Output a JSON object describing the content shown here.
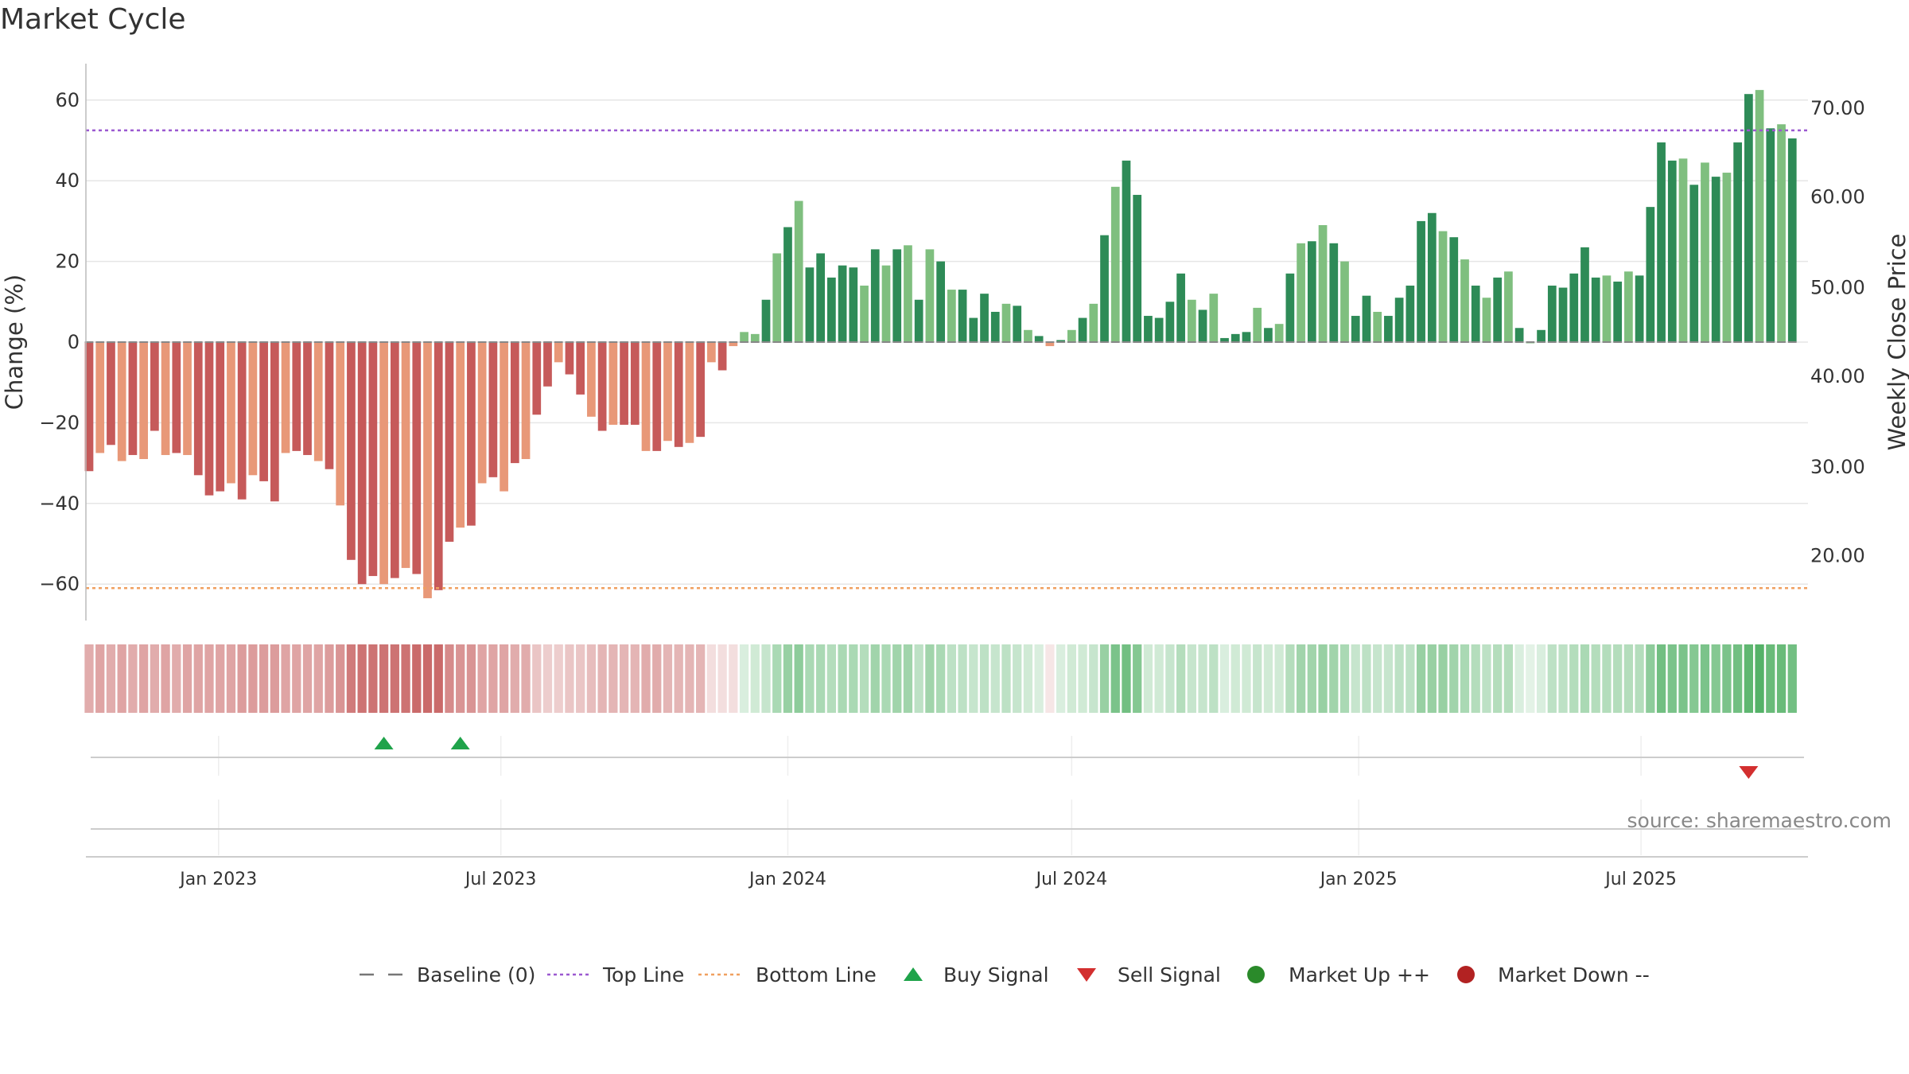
{
  "chart_data": {
    "type": "bar",
    "title": "Market Cycle",
    "ylabel_left": "Change (%)",
    "ylabel_right": "Weekly Close Price",
    "ylim": [
      -69,
      69
    ],
    "y_ticks": [
      60,
      40,
      20,
      0,
      -20,
      -40,
      -60
    ],
    "y_tick_labels": [
      "60",
      "40",
      "20",
      "0",
      "−20",
      "−40",
      "−60"
    ],
    "right_ticks": [
      {
        "label": "70.00",
        "y": 58
      },
      {
        "label": "60.00",
        "y": 36
      },
      {
        "label": "50.00",
        "y": 13.5
      },
      {
        "label": "40.00",
        "y": -8.5
      },
      {
        "label": "30.00",
        "y": -31
      },
      {
        "label": "20.00",
        "y": -53
      }
    ],
    "top_line": 52.5,
    "bottom_line": -61,
    "baseline": 0,
    "x_start": "2022-10-10",
    "x_step_days": 7,
    "x_end": "2025-10-13",
    "x_ticks": [
      {
        "label": "Jan 2023",
        "date": "2023-01-01"
      },
      {
        "label": "Jul 2023",
        "date": "2023-07-01"
      },
      {
        "label": "Jan 2024",
        "date": "2024-01-01"
      },
      {
        "label": "Jul 2024",
        "date": "2024-07-01"
      },
      {
        "label": "Jan 2025",
        "date": "2025-01-01"
      },
      {
        "label": "Jul 2025",
        "date": "2025-07-01"
      }
    ],
    "values": [
      -32,
      -27.5,
      -25.5,
      -29.5,
      -28,
      -29,
      -22,
      -28,
      -27.5,
      -28,
      -33,
      -38,
      -37,
      -35,
      -39,
      -33,
      -34.5,
      -39.5,
      -27.5,
      -27,
      -28,
      -29.5,
      -31.5,
      -40.5,
      -54,
      -60,
      -58,
      -60,
      -58.5,
      -56,
      -57.5,
      -63.5,
      -61.5,
      -49.5,
      -46,
      -45.5,
      -35,
      -33.5,
      -37,
      -30,
      -29,
      -18,
      -11,
      -5,
      -8,
      -13,
      -18.5,
      -22,
      -20.5,
      -20.5,
      -20.5,
      -27,
      -27,
      -24.5,
      -26,
      -25,
      -23.5,
      -5,
      -7,
      -1,
      2.5,
      2,
      10.5,
      22,
      28.5,
      35,
      18.5,
      22,
      16,
      19,
      18.5,
      14,
      23,
      19,
      23,
      24,
      10.5,
      23,
      20,
      13,
      13,
      6,
      12,
      7.5,
      9.5,
      9,
      3,
      1.5,
      -1,
      0.5,
      3,
      6,
      9.5,
      26.5,
      38.5,
      45,
      36.5,
      6.5,
      6,
      10,
      17,
      10.5,
      8,
      12,
      1,
      2,
      2.5,
      8.5,
      3.5,
      4.5,
      17,
      24.5,
      25,
      29,
      24.5,
      20,
      6.5,
      11.5,
      7.5,
      6.5,
      11,
      14,
      30,
      32,
      27.5,
      26,
      20.5,
      14,
      11,
      16,
      17.5,
      3.5,
      0,
      3,
      14,
      13.5,
      17,
      23.5,
      16,
      16.5,
      15,
      17.5,
      16.5,
      33.5,
      49.5,
      45,
      45.5,
      39,
      44.5,
      41,
      42,
      49.5,
      61.5,
      62.5,
      53,
      54,
      50.5
    ],
    "bar_colors": "dddddddddddddddddddddddddddddddddddddddddddddddddddddddddddddGGGGGGGGGGGGGGGGGGGGGGGGGGGGGGGGGGGGGGGGGGGGGGGGGGGGGGGGGGGGGGGGGGGGGGGGGGGGGGGGGGGGGGGGGGGGGGGGGGGGGGGGGGGGGGGGGGGGGGGGGGGGGGGGGGGGGGGGGGGGGGGGGGGGGGGGGGGGGGGGGGGGGGG",
    "bar_shades": "DlDlDlDlDlDDDlDlDDlDDlDlDDDlDlDlDDlDlDlDlDDlDDlDlDDlDlDlDlDlDlGlGlGGGGGlGlGlGlGlGGGGlGlGlGlGlGlGGGGGGlGlGGGlGlGlGlGlGGlGGGGGlGlGlGlGlGGGGGGlGlGGGGlGlGlGGlGlGlGlGGlGGGGGlGlGlGGGGlGl",
    "signal_strip": [
      0.5,
      0.55,
      0.5,
      0.55,
      0.5,
      0.55,
      0.5,
      0.55,
      0.5,
      0.55,
      0.55,
      0.55,
      0.55,
      0.55,
      0.6,
      0.6,
      0.6,
      0.6,
      0.55,
      0.55,
      0.55,
      0.55,
      0.6,
      0.65,
      0.8,
      0.85,
      0.85,
      0.85,
      0.85,
      0.85,
      0.9,
      0.9,
      0.9,
      0.7,
      0.65,
      0.65,
      0.55,
      0.55,
      0.55,
      0.5,
      0.5,
      0.35,
      0.3,
      0.3,
      0.35,
      0.35,
      0.4,
      0.45,
      0.45,
      0.45,
      0.45,
      0.5,
      0.5,
      0.45,
      0.45,
      0.45,
      0.45,
      0.2,
      0.2,
      0.2,
      0.2,
      0.25,
      0.3,
      0.45,
      0.55,
      0.6,
      0.45,
      0.45,
      0.4,
      0.45,
      0.45,
      0.4,
      0.5,
      0.45,
      0.5,
      0.5,
      0.35,
      0.5,
      0.45,
      0.35,
      0.35,
      0.3,
      0.35,
      0.3,
      0.35,
      0.3,
      0.25,
      0.2,
      0.15,
      0.2,
      0.25,
      0.25,
      0.3,
      0.55,
      0.7,
      0.75,
      0.65,
      0.25,
      0.25,
      0.3,
      0.4,
      0.3,
      0.3,
      0.35,
      0.2,
      0.25,
      0.25,
      0.3,
      0.25,
      0.25,
      0.4,
      0.5,
      0.5,
      0.55,
      0.5,
      0.45,
      0.3,
      0.35,
      0.3,
      0.3,
      0.35,
      0.35,
      0.55,
      0.55,
      0.55,
      0.5,
      0.45,
      0.4,
      0.35,
      0.4,
      0.4,
      0.2,
      0.15,
      0.2,
      0.35,
      0.35,
      0.4,
      0.45,
      0.4,
      0.4,
      0.4,
      0.4,
      0.4,
      0.6,
      0.75,
      0.7,
      0.7,
      0.65,
      0.7,
      0.65,
      0.7,
      0.75,
      0.85,
      0.9,
      0.8,
      0.8,
      0.75
    ],
    "buy_signals": [
      "2023-04-17",
      "2023-06-05"
    ],
    "sell_signals": [
      "2025-09-08"
    ],
    "colors": {
      "down_dark": "#c65a5a",
      "down_light": "#e89878",
      "up_dark": "#2e8b57",
      "up_light": "#7fbf7f",
      "top_line": "#9b59d0",
      "bottom_line": "#f0a060",
      "baseline": "#888888",
      "buy": "#1fa34a",
      "sell": "#d32f2f",
      "market_up": "#2a8a2a",
      "market_down": "#b22222"
    },
    "legend": [
      {
        "label": "Baseline (0)",
        "type": "dash",
        "color": "#777777"
      },
      {
        "label": "Top Line",
        "type": "dot",
        "color": "#9b59d0"
      },
      {
        "label": "Bottom Line",
        "type": "dot",
        "color": "#f0a060"
      },
      {
        "label": "Buy Signal",
        "type": "tri-up",
        "color": "#1fa34a"
      },
      {
        "label": "Sell Signal",
        "type": "tri-down",
        "color": "#d32f2f"
      },
      {
        "label": "Market Up ++",
        "type": "circle",
        "color": "#2a8a2a"
      },
      {
        "label": "Market Down --",
        "type": "circle",
        "color": "#b22222"
      }
    ],
    "source": "source: sharemaestro.com"
  }
}
